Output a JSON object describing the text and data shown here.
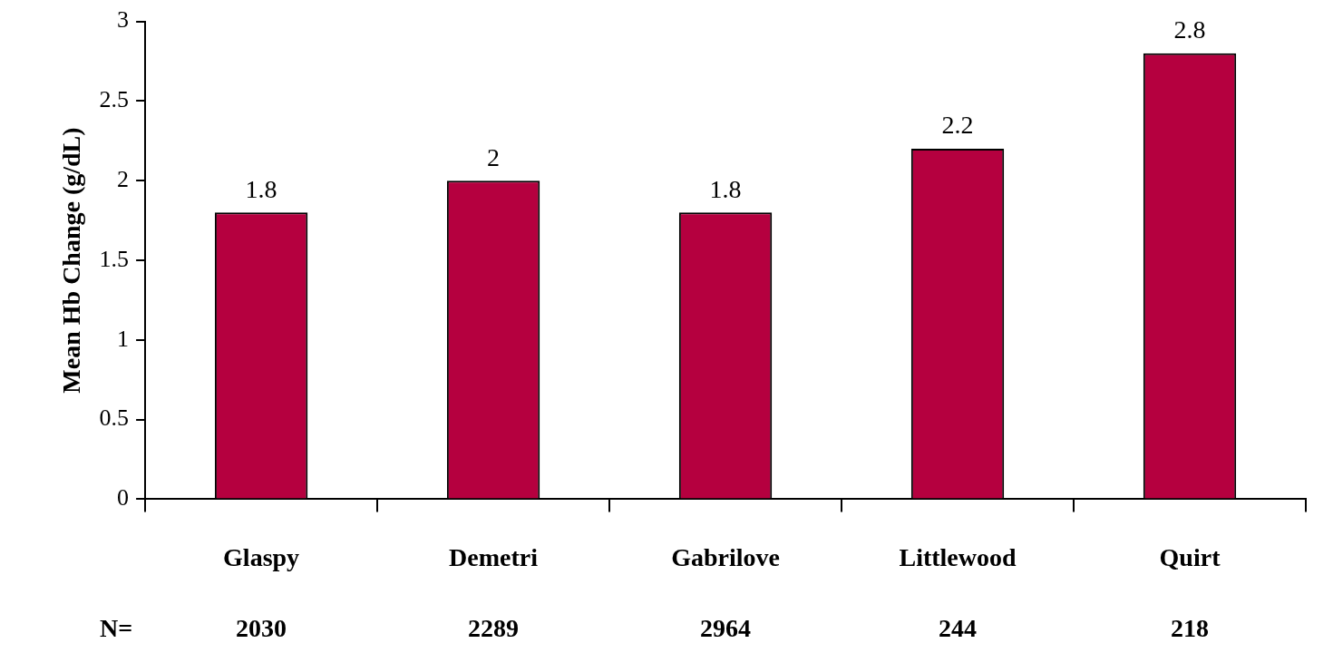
{
  "chart_data": {
    "type": "bar",
    "ylabel": "Mean Hb Change (g/dL)",
    "categories": [
      "Glaspy",
      "Demetri",
      "Gabrilove",
      "Littlewood",
      "Quirt"
    ],
    "values": [
      1.8,
      2,
      1.8,
      2.2,
      2.8
    ],
    "color": "#b5003f",
    "ylim": [
      0,
      3
    ],
    "yticks": [
      0,
      0.5,
      1,
      1.5,
      2,
      2.5,
      3
    ],
    "grid": false,
    "legend": false,
    "data_labels": true,
    "annotations": [
      "N=",
      "2030",
      "2289",
      "2964",
      "244",
      "218"
    ]
  }
}
